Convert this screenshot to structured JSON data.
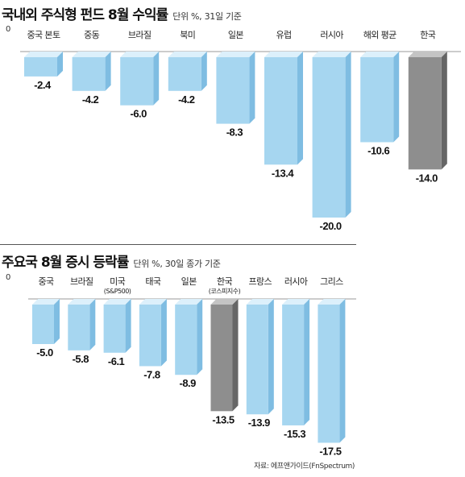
{
  "colors": {
    "bar_front": "#a6d6f0",
    "bar_top": "#dcf0fb",
    "bar_side": "#7fbde2",
    "highlight_front": "#8e8e8e",
    "highlight_top": "#c4c4c4",
    "highlight_side": "#666666",
    "axis": "#999999"
  },
  "source": "자료: 에프앤가이드(FnSpectrum)",
  "chart_data": [
    {
      "type": "bar",
      "title": "국내외 주식형 펀드 8월 수익률",
      "subtitle": "단위 %, 31일 기준",
      "zero_label": "0",
      "categories": [
        "중국 본토",
        "중동",
        "브라질",
        "북미",
        "일본",
        "유럽",
        "러시아",
        "해외 평균",
        "한국"
      ],
      "values": [
        -2.4,
        -4.2,
        -6.0,
        -4.2,
        -8.3,
        -13.4,
        -20.0,
        -10.6,
        -14.0
      ],
      "value_labels": [
        "-2.4",
        "-4.2",
        "-6.0",
        "-4.2",
        "-8.3",
        "-13.4",
        "-20.0",
        "-10.6",
        "-14.0"
      ],
      "highlight": [
        "한국"
      ],
      "ylim": [
        -20,
        0
      ]
    },
    {
      "type": "bar",
      "title": "주요국 8월 증시 등락률",
      "subtitle": "단위 %, 30일 종가 기준",
      "zero_label": "0",
      "categories": [
        "중국",
        "브라질",
        "미국",
        "태국",
        "일본",
        "한국",
        "프랑스",
        "러시아",
        "그리스"
      ],
      "category_notes": [
        "",
        "",
        "(S&P500)",
        "",
        "",
        "(코스피지수)",
        "",
        "",
        ""
      ],
      "values": [
        -5.0,
        -5.8,
        -6.1,
        -7.8,
        -8.9,
        -13.5,
        -13.9,
        -15.3,
        -17.5
      ],
      "value_labels": [
        "-5.0",
        "-5.8",
        "-6.1",
        "-7.8",
        "-8.9",
        "-13.5",
        "-13.9",
        "-15.3",
        "-17.5"
      ],
      "highlight": [
        "한국"
      ],
      "ylim": [
        -17.5,
        0
      ]
    }
  ]
}
